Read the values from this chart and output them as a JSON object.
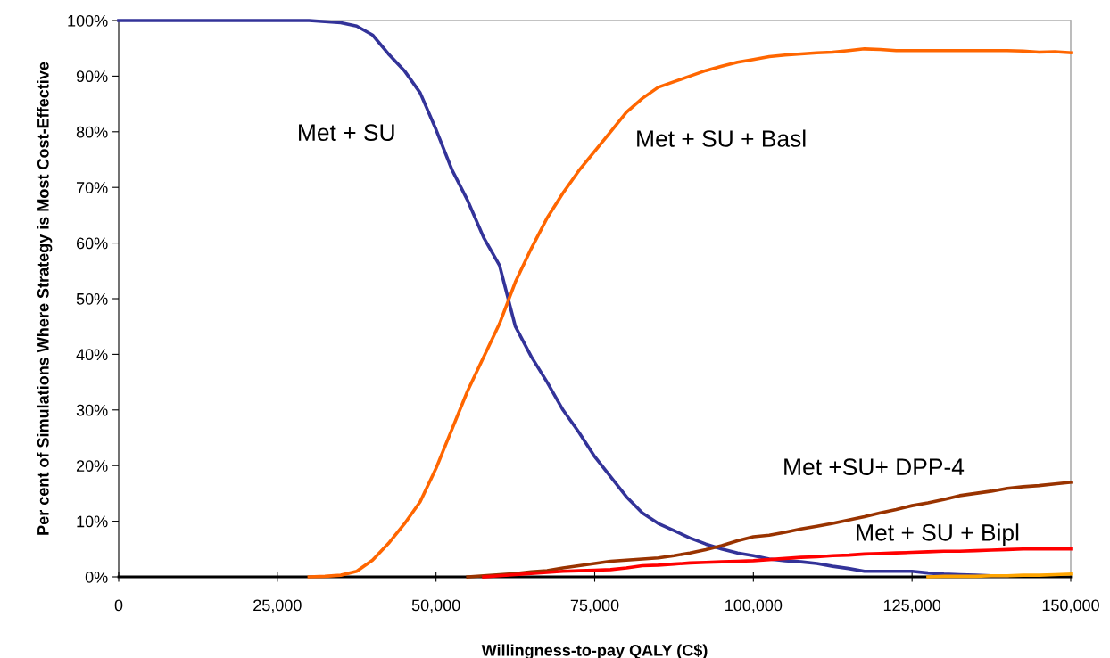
{
  "chart_data": {
    "type": "line",
    "xlabel": "Willingness-to-pay QALY (C$)",
    "ylabel": "Per cent of Simulations Where Strategy is Most Cost-Effective",
    "x": [
      0,
      5000,
      10000,
      15000,
      20000,
      25000,
      30000,
      32500,
      35000,
      37500,
      40000,
      42500,
      45000,
      47500,
      50000,
      52500,
      55000,
      57500,
      60000,
      62500,
      65000,
      67500,
      70000,
      72500,
      75000,
      77500,
      80000,
      82500,
      85000,
      87500,
      90000,
      92500,
      95000,
      97500,
      100000,
      102500,
      105000,
      107500,
      110000,
      112500,
      115000,
      117500,
      120000,
      122500,
      125000,
      127500,
      130000,
      132500,
      135000,
      137500,
      140000,
      142500,
      145000,
      147500,
      150000
    ],
    "series": [
      {
        "name": "Met + SU",
        "color": "#333399",
        "values": [
          100,
          100,
          100,
          100,
          100,
          100,
          100,
          99.8,
          99.6,
          99,
          97.4,
          94,
          91,
          87,
          80.4,
          73.2,
          67.6,
          61,
          56,
          45,
          39.6,
          35,
          30,
          26,
          21.6,
          18,
          14.4,
          11.5,
          9.6,
          8.3,
          7,
          5.9,
          5,
          4.3,
          3.8,
          3.2,
          2.9,
          2.7,
          2.4,
          1.9,
          1.5,
          1,
          1,
          1,
          1,
          0.7,
          0.5,
          0.4,
          0.3,
          0.2,
          0.2,
          null,
          null,
          null,
          null
        ]
      },
      {
        "name": "Met + SU + Basl",
        "color": "#ff6600",
        "values": [
          null,
          null,
          null,
          null,
          null,
          null,
          0,
          0.1,
          0.3,
          1,
          3,
          6,
          9.5,
          13.5,
          19.5,
          26.5,
          33.5,
          39.5,
          45.5,
          53,
          59,
          64.5,
          69,
          73,
          76.5,
          80,
          83.5,
          86,
          88,
          89,
          90,
          91,
          91.8,
          92.5,
          93,
          93.5,
          93.8,
          94,
          94.2,
          94.3,
          94.6,
          94.9,
          94.8,
          94.6,
          94.6,
          94.6,
          94.6,
          94.6,
          94.6,
          94.6,
          94.6,
          94.5,
          94.3,
          94.4,
          94.2
        ]
      },
      {
        "name": "Met +SU+ DPP-4",
        "color": "#993300",
        "values": [
          null,
          null,
          null,
          null,
          null,
          null,
          null,
          null,
          null,
          null,
          null,
          null,
          null,
          null,
          null,
          null,
          0,
          0.2,
          0.4,
          0.6,
          0.9,
          1.1,
          1.6,
          2,
          2.4,
          2.8,
          3,
          3.2,
          3.4,
          3.8,
          4.3,
          4.9,
          5.6,
          6.5,
          7.2,
          7.5,
          8,
          8.6,
          9.1,
          9.6,
          10.2,
          10.8,
          11.5,
          12.1,
          12.8,
          13.3,
          13.9,
          14.6,
          15,
          15.4,
          15.9,
          16.2,
          16.4,
          16.7,
          17
        ]
      },
      {
        "name": "Met + SU + Bipl",
        "color": "#ff0000",
        "values": [
          null,
          null,
          null,
          null,
          null,
          null,
          null,
          null,
          null,
          null,
          null,
          null,
          null,
          null,
          null,
          null,
          null,
          0,
          0.2,
          0.4,
          0.6,
          0.8,
          1,
          1.1,
          1.2,
          1.3,
          1.6,
          2,
          2.1,
          2.3,
          2.5,
          2.6,
          2.7,
          2.8,
          2.9,
          3.1,
          3.3,
          3.5,
          3.6,
          3.8,
          3.9,
          4.1,
          4.2,
          4.3,
          4.4,
          4.5,
          4.6,
          4.6,
          4.7,
          4.8,
          4.9,
          5,
          5,
          5,
          5
        ]
      },
      {
        "color": "#ffa500",
        "values": [
          null,
          null,
          null,
          null,
          null,
          null,
          null,
          null,
          null,
          null,
          null,
          null,
          null,
          null,
          null,
          null,
          null,
          null,
          null,
          null,
          null,
          null,
          null,
          null,
          null,
          null,
          null,
          null,
          null,
          null,
          null,
          null,
          null,
          null,
          null,
          null,
          null,
          null,
          null,
          null,
          null,
          null,
          null,
          null,
          null,
          0,
          0.1,
          0.1,
          0.1,
          0.2,
          0.2,
          0.3,
          0.3,
          0.4,
          0.5
        ]
      }
    ],
    "xlim": [
      0,
      150000
    ],
    "xticks": [
      0,
      {
        "value": 25000,
        "label": "25,000"
      },
      {
        "value": 50000,
        "label": "50,000"
      },
      {
        "value": 75000,
        "label": "75,000"
      },
      {
        "value": 100000,
        "label": "100,000"
      },
      {
        "value": 125000,
        "label": "125,000"
      },
      {
        "value": 150000,
        "label": "150,000"
      }
    ],
    "ylim": [
      0,
      100
    ],
    "yticks": [
      {
        "value": 0,
        "label": "0%"
      },
      {
        "value": 10,
        "label": "10%"
      },
      {
        "value": 20,
        "label": "20%"
      },
      {
        "value": 30,
        "label": "30%"
      },
      {
        "value": 40,
        "label": "40%"
      },
      {
        "value": 50,
        "label": "50%"
      },
      {
        "value": 60,
        "label": "60%"
      },
      {
        "value": 70,
        "label": "70%"
      },
      {
        "value": 80,
        "label": "80%"
      },
      {
        "value": 90,
        "label": "90%"
      },
      {
        "value": 100,
        "label": "100%"
      }
    ],
    "grid": false,
    "legend": false,
    "marker": "none",
    "line_style": "solid"
  }
}
